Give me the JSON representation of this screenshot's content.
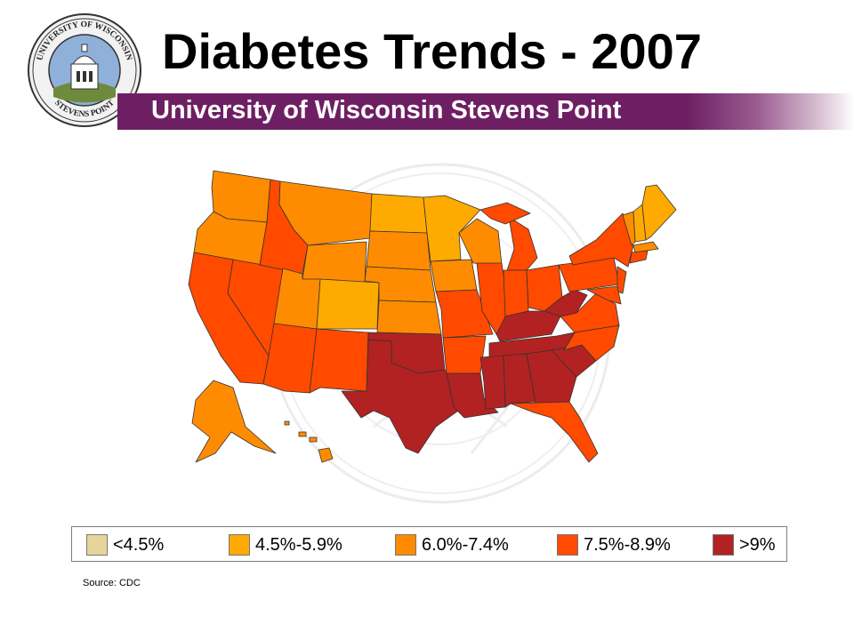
{
  "header": {
    "title": "Diabetes Trends - 2007",
    "subtitle": "University of Wisconsin Stevens Point"
  },
  "logo": {
    "text_top": "UNIVERSITY OF WISCONSIN",
    "text_bottom": "STEVENS POINT"
  },
  "legend": {
    "items": [
      {
        "label": "<4.5%",
        "color": "#e6d49a"
      },
      {
        "label": "4.5%-5.9%",
        "color": "#ffaa00"
      },
      {
        "label": "6.0%-7.4%",
        "color": "#ff8c00"
      },
      {
        "label": "7.5%-8.9%",
        "color": "#ff4a00"
      },
      {
        "label": ">9%",
        "color": "#b22222"
      }
    ]
  },
  "source": "Source: CDC"
}
